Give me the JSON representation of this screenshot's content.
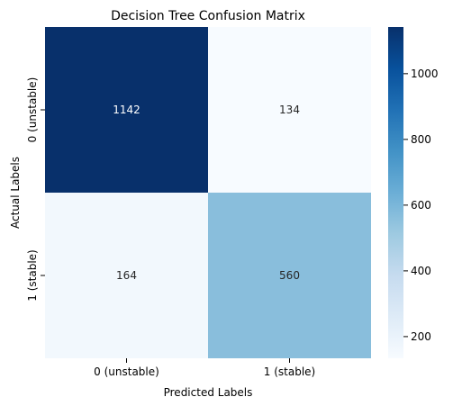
{
  "chart_data": {
    "type": "heatmap",
    "title": "Decision Tree Confusion Matrix",
    "xlabel": "Predicted Labels",
    "ylabel": "Actual Labels",
    "x_categories": [
      "0 (unstable)",
      "1 (stable)"
    ],
    "y_categories": [
      "0 (unstable)",
      "1 (stable)"
    ],
    "matrix": [
      [
        1142,
        134
      ],
      [
        164,
        560
      ]
    ],
    "colormap": "Blues",
    "colorbar": {
      "range": [
        134,
        1142
      ],
      "ticks": [
        200,
        400,
        600,
        800,
        1000
      ]
    },
    "colors": {
      "1142": "#08306b",
      "134": "#f7fbff",
      "164": "#f2f8fd",
      "560": "#89bedc"
    },
    "grid": false
  }
}
